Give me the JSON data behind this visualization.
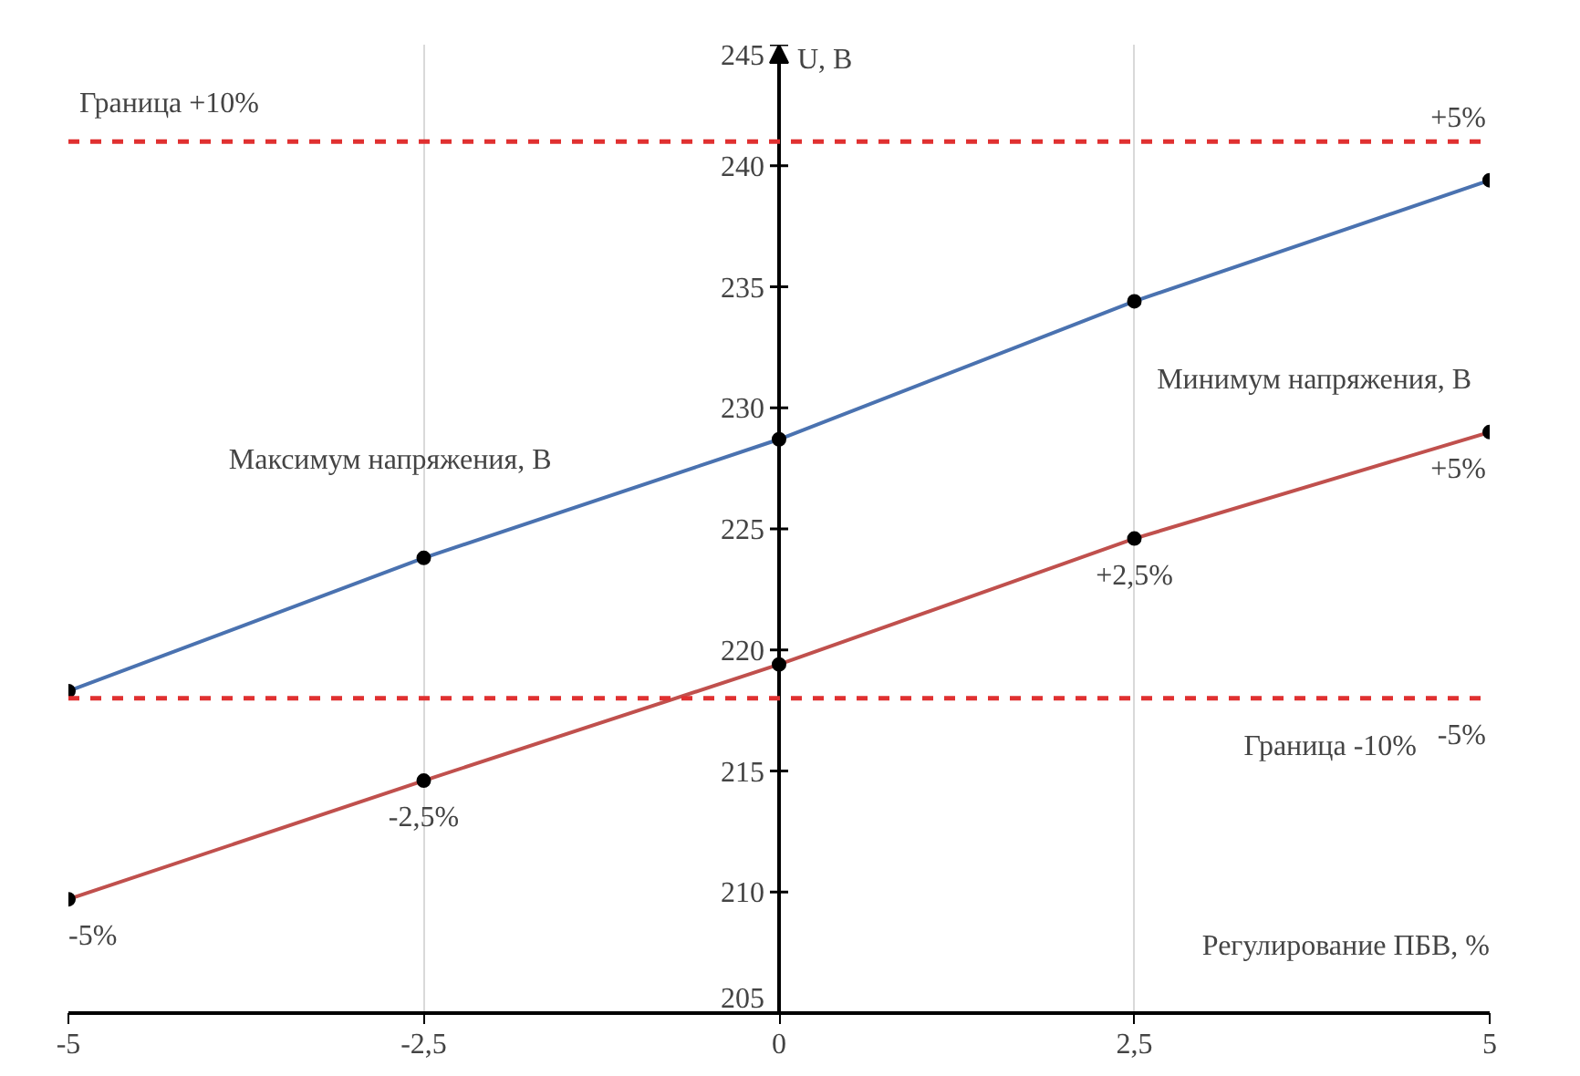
{
  "chart_data": {
    "type": "line",
    "xlabel": "Регулирование ПБВ, %",
    "ylabel": "U, В",
    "x": [
      -5,
      -2.5,
      0,
      2.5,
      5
    ],
    "series": [
      {
        "name": "Максимум напряжения, В",
        "color": "#4a72b0",
        "values": [
          218.3,
          223.8,
          228.7,
          234.4,
          239.4
        ]
      },
      {
        "name": "Минимум напряжения, В",
        "color": "#c0504d",
        "values": [
          209.7,
          214.6,
          219.4,
          224.6,
          229.0
        ]
      }
    ],
    "xlim": [
      -5,
      5
    ],
    "ylim": [
      205,
      245
    ],
    "xticks": [
      -5,
      {
        "value": -2.5,
        "label": "-2,5"
      },
      0,
      {
        "value": 2.5,
        "label": "2,5"
      },
      5
    ],
    "yticks": [
      205,
      210,
      215,
      220,
      225,
      230,
      235,
      240,
      245
    ],
    "grid": "x",
    "marker": "circle",
    "line_style": "solid",
    "ref_lines": [
      {
        "axis": "y",
        "value": 241,
        "label": "Граница +10%",
        "color": "#e03030",
        "line_style": "dashed"
      },
      {
        "axis": "y",
        "value": 218,
        "label": "Граница -10%",
        "color": "#e03030",
        "line_style": "dashed"
      }
    ],
    "annotations": [
      {
        "text": "+5%",
        "x": 5,
        "y": 241
      },
      {
        "text": "-5%",
        "x": 5,
        "y": 218
      },
      {
        "text": "-5%",
        "x": -5,
        "y": 209.7
      },
      {
        "text": "-2,5%",
        "x": -2.5,
        "y": 214.6
      },
      {
        "text": "+2,5%",
        "x": 2.5,
        "y": 224.6
      },
      {
        "text": "+5%",
        "x": 5,
        "y": 229.0
      }
    ]
  }
}
